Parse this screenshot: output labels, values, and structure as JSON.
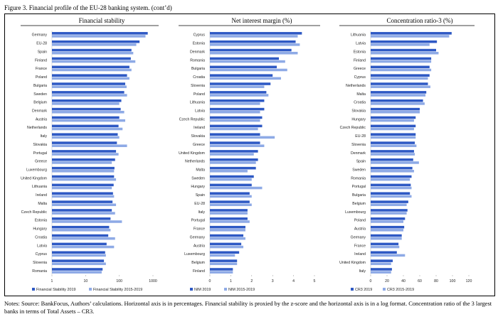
{
  "figure_title": "Figure 3. Financial profile of the EU-28 banking system. (cont’d)",
  "notes": "Notes: Source: BankFocus, Authors’ calculations. Horizontal axis is in percentages. Financial stability is proxied by the z-score and the horizontal axis is in a log format. Concentration ratio of the 3 largest banks in terms of Total Assets – CR3.",
  "colors": {
    "series_2019": "#2e59c4",
    "series_2015_2019": "#8eaae6"
  },
  "chart_data": [
    {
      "type": "bar",
      "orientation": "horizontal",
      "title": "Financial stability",
      "xscale": "log",
      "xlim": [
        1,
        1000
      ],
      "xticks": [
        "1",
        "10",
        "100",
        "1000"
      ],
      "legend_position": "bottom",
      "categories": [
        "Germany",
        "EU-28",
        "Spain",
        "Finland",
        "France",
        "Poland",
        "Bulgaria",
        "Sweden",
        "Belgium",
        "Denmark",
        "Austria",
        "Netherlands",
        "Italy",
        "Slovakia",
        "Portugal",
        "Greece",
        "Luxembourg",
        "United Kingdom",
        "Lithuania",
        "Ireland",
        "Malta",
        "Czech Republic",
        "Estonia",
        "Hungary",
        "Croatia",
        "Latvia",
        "Cyprus",
        "Slovenia",
        "Romania"
      ],
      "series": [
        {
          "name": "Financial Stability 2019",
          "values": [
            700,
            400,
            230,
            220,
            200,
            170,
            150,
            140,
            115,
            110,
            100,
            95,
            90,
            85,
            80,
            75,
            72,
            70,
            68,
            65,
            63,
            60,
            55,
            50,
            47,
            42,
            38,
            35,
            32
          ]
        },
        {
          "name": "Financial Stability 2015-2019",
          "values": [
            600,
            320,
            260,
            300,
            230,
            200,
            165,
            170,
            100,
            140,
            150,
            125,
            100,
            170,
            95,
            60,
            70,
            80,
            60,
            70,
            80,
            75,
            120,
            55,
            75,
            70,
            40,
            40,
            30
          ]
        }
      ]
    },
    {
      "type": "bar",
      "orientation": "horizontal",
      "title": "Net interest margin (%)",
      "xlim": [
        0,
        5
      ],
      "xticks": [
        "0",
        "1",
        "2",
        "3",
        "4",
        "5"
      ],
      "legend_position": "bottom",
      "categories": [
        "Cyprus",
        "Estonia",
        "Denmark",
        "Romania",
        "Bulgaria",
        "Croatia",
        "Slovenia",
        "Poland",
        "Lithuania",
        "Latvia",
        "Czech Republic",
        "Ireland",
        "Slovakia",
        "Greece",
        "United Kingdom",
        "Netherlands",
        "Malta",
        "Sweden",
        "Hungary",
        "Spain",
        "EU-28",
        "Italy",
        "Portugal",
        "France",
        "Germany",
        "Austria",
        "Luxembourg",
        "Belgium",
        "Finland"
      ],
      "series": [
        {
          "name": "NIM 2019",
          "values": [
            4.4,
            4.1,
            3.9,
            3.3,
            3.2,
            3.0,
            2.9,
            2.7,
            2.6,
            2.6,
            2.5,
            2.5,
            2.4,
            2.4,
            2.3,
            2.3,
            2.2,
            2.1,
            2.0,
            1.9,
            1.9,
            1.8,
            1.8,
            1.7,
            1.6,
            1.5,
            1.4,
            1.3,
            1.1
          ]
        },
        {
          "name": "NIM 2015-2019",
          "values": [
            4.2,
            4.3,
            4.2,
            3.6,
            3.7,
            3.4,
            2.6,
            2.8,
            2.4,
            2.4,
            2.4,
            2.3,
            3.1,
            2.6,
            2.1,
            2.2,
            1.8,
            2.0,
            2.5,
            2.0,
            2.0,
            1.8,
            1.9,
            1.7,
            1.7,
            1.6,
            1.2,
            1.3,
            1.1
          ]
        }
      ]
    },
    {
      "type": "bar",
      "orientation": "horizontal",
      "title": "Concentration ratio-3 (%)",
      "xlim": [
        0,
        120
      ],
      "xticks": [
        "0",
        "20",
        "40",
        "60",
        "80",
        "100",
        "120"
      ],
      "legend_position": "bottom",
      "categories": [
        "Lithuania",
        "Latvia",
        "Estonia",
        "Finland",
        "Greece",
        "Cyprus",
        "Netherlands",
        "Malta",
        "Croatia",
        "Slovakia",
        "Hungary",
        "Czech Republic",
        "EU-28",
        "Slovenia",
        "Denmark",
        "Spain",
        "Sweden",
        "Romania",
        "Portugal",
        "Bulgaria",
        "Belgium",
        "Luxembourg",
        "Poland",
        "Austria",
        "Germany",
        "France",
        "Ireland",
        "United Kingdom",
        "Italy"
      ],
      "series": [
        {
          "name": "CR3 2019",
          "values": [
            99,
            81,
            80,
            74,
            72,
            72,
            70,
            68,
            64,
            60,
            55,
            55,
            55,
            54,
            53,
            52,
            51,
            50,
            49,
            48,
            46,
            45,
            42,
            41,
            38,
            34,
            32,
            27,
            26
          ]
        },
        {
          "name": "CR3 2015-2019",
          "values": [
            96,
            72,
            83,
            74,
            74,
            70,
            73,
            67,
            66,
            60,
            53,
            53,
            55,
            56,
            54,
            59,
            53,
            48,
            50,
            50,
            44,
            44,
            40,
            40,
            38,
            35,
            42,
            25,
            25
          ]
        }
      ]
    }
  ]
}
